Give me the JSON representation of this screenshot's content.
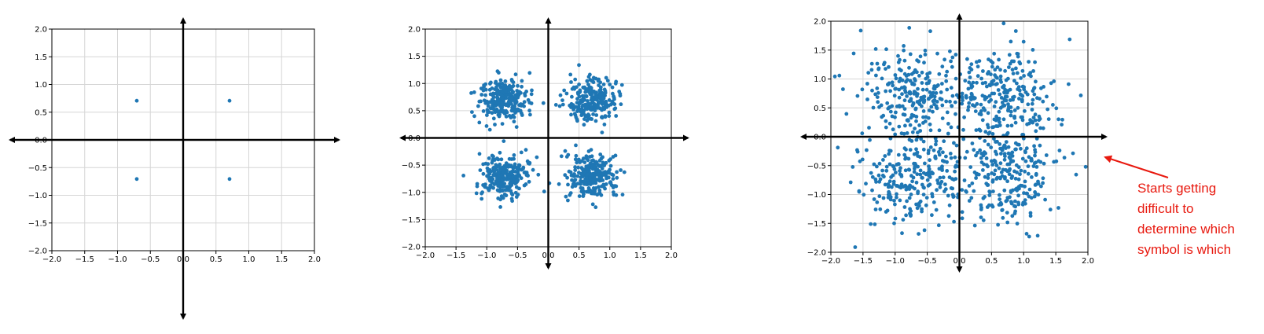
{
  "theme": {
    "point_color": "#1f77b4",
    "axis_color": "#000000",
    "annotation_color": "#e8190f"
  },
  "chart_data": [
    {
      "type": "scatter",
      "title": "",
      "xlabel": "",
      "ylabel": "",
      "xlim": [
        -2.0,
        2.0
      ],
      "ylim": [
        -2.0,
        2.0
      ],
      "xticks": [
        "−2.0",
        "−1.5",
        "−1.0",
        "−0.5",
        "0.0",
        "0.5",
        "1.0",
        "1.5",
        "2.0"
      ],
      "yticks": [
        "2.0",
        "1.5",
        "1.0",
        "0.5",
        "0.0",
        "−0.5",
        "−1.0",
        "−1.5",
        "−2.0"
      ],
      "grid": true,
      "noise_spread": 0,
      "points_per_cluster": 1,
      "centers": [
        [
          0.707,
          0.707
        ],
        [
          -0.707,
          0.707
        ],
        [
          -0.707,
          -0.707
        ],
        [
          0.707,
          -0.707
        ]
      ]
    },
    {
      "type": "scatter",
      "title": "",
      "xlabel": "",
      "ylabel": "",
      "xlim": [
        -2.0,
        2.0
      ],
      "ylim": [
        -2.0,
        2.0
      ],
      "xticks": [
        "−2.0",
        "−1.5",
        "−1.0",
        "−0.5",
        "0.0",
        "0.5",
        "1.0",
        "1.5",
        "2.0"
      ],
      "yticks": [
        "2.0",
        "1.5",
        "1.0",
        "0.5",
        "0.0",
        "−0.5",
        "−1.0",
        "−1.5",
        "−2.0"
      ],
      "grid": true,
      "noise_spread": 0.2,
      "points_per_cluster": 250,
      "centers": [
        [
          0.707,
          0.707
        ],
        [
          -0.707,
          0.707
        ],
        [
          -0.707,
          -0.707
        ],
        [
          0.707,
          -0.707
        ]
      ]
    },
    {
      "type": "scatter",
      "title": "",
      "xlabel": "",
      "ylabel": "",
      "xlim": [
        -2.0,
        2.0
      ],
      "ylim": [
        -2.0,
        2.0
      ],
      "xticks": [
        "−2.0",
        "−1.5",
        "−1.0",
        "−0.5",
        "0.0",
        "0.5",
        "1.0",
        "1.5",
        "2.0"
      ],
      "yticks": [
        "2.0",
        "1.5",
        "1.0",
        "0.5",
        "0.0",
        "−0.5",
        "−1.0",
        "−1.5",
        "−2.0"
      ],
      "grid": true,
      "noise_spread": 0.42,
      "points_per_cluster": 250,
      "centers": [
        [
          0.707,
          0.707
        ],
        [
          -0.707,
          0.707
        ],
        [
          -0.707,
          -0.707
        ],
        [
          0.707,
          -0.707
        ]
      ]
    }
  ],
  "annotation": {
    "lines": [
      "Starts getting",
      "difficult to",
      "determine which",
      "symbol is which"
    ]
  }
}
